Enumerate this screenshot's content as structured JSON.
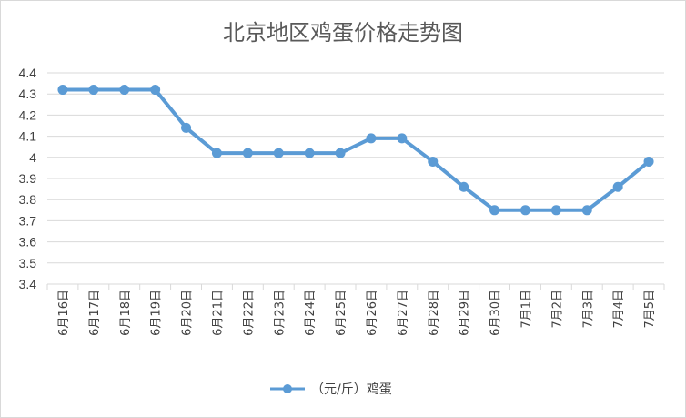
{
  "chart_data": {
    "type": "line",
    "title": "北京地区鸡蛋价格走势图",
    "categories": [
      "6月16日",
      "6月17日",
      "6月18日",
      "6月19日",
      "6月20日",
      "6月21日",
      "6月22日",
      "6月23日",
      "6月24日",
      "6月25日",
      "6月26日",
      "6月27日",
      "6月28日",
      "6月29日",
      "6月30日",
      "7月1日",
      "7月2日",
      "7月3日",
      "7月4日",
      "7月5日"
    ],
    "series": [
      {
        "name": "（元/斤）鸡蛋",
        "values": [
          4.32,
          4.32,
          4.32,
          4.32,
          4.14,
          4.02,
          4.02,
          4.02,
          4.02,
          4.02,
          4.09,
          4.09,
          3.98,
          3.86,
          3.75,
          3.75,
          3.75,
          3.75,
          3.86,
          3.98
        ]
      }
    ],
    "ylim": [
      3.4,
      4.4
    ],
    "yticks": [
      "4.4",
      "4.3",
      "4.2",
      "4.1",
      "4",
      "3.9",
      "3.8",
      "3.7",
      "3.6",
      "3.5",
      "3.4"
    ],
    "xlabel": "",
    "ylabel": "",
    "grid": true,
    "legend_position": "bottom",
    "line_color": "#5b9bd5",
    "grid_color": "#d9d9d9"
  }
}
